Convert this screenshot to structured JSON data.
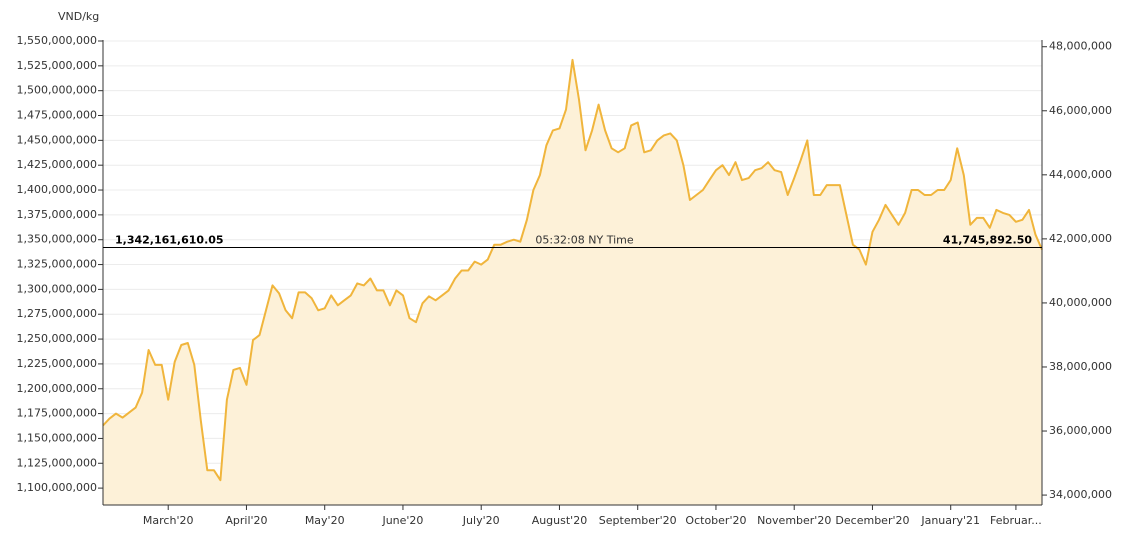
{
  "chart_data": {
    "type": "area",
    "unit_label": "VND/kg",
    "categories": [
      null,
      null,
      null,
      null,
      null,
      null,
      null,
      null,
      null,
      null,
      "March'20",
      null,
      null,
      null,
      null,
      null,
      null,
      null,
      null,
      null,
      null,
      null,
      "April'20",
      null,
      null,
      null,
      null,
      null,
      null,
      null,
      null,
      null,
      null,
      null,
      "May'20",
      null,
      null,
      null,
      null,
      null,
      null,
      null,
      null,
      null,
      null,
      null,
      "June'20",
      null,
      null,
      null,
      null,
      null,
      null,
      null,
      null,
      null,
      null,
      null,
      "July'20",
      null,
      null,
      null,
      null,
      null,
      null,
      null,
      null,
      null,
      null,
      null,
      "August'20",
      null,
      null,
      null,
      null,
      null,
      null,
      null,
      null,
      null,
      null,
      null,
      "September'20",
      null,
      null,
      null,
      null,
      null,
      null,
      null,
      null,
      null,
      null,
      null,
      "October'20",
      null,
      null,
      null,
      null,
      null,
      null,
      null,
      null,
      null,
      null,
      null,
      "November'20",
      null,
      null,
      null,
      null,
      null,
      null,
      null,
      null,
      null,
      null,
      null,
      "December'20",
      null,
      null,
      null,
      null,
      null,
      null,
      null,
      null,
      null,
      null,
      null,
      "January'21",
      null,
      null,
      null,
      null,
      null,
      null,
      null,
      null,
      null,
      "Februar...",
      null,
      null,
      null,
      null
    ],
    "values": [
      1163000000,
      1170000000,
      1175000000,
      1171000000,
      1176000000,
      1181000000,
      1196000000,
      1239000000,
      1224000000,
      1224000000,
      1189000000,
      1227000000,
      1244000000,
      1246000000,
      1224000000,
      1168000000,
      1118000000,
      1118000000,
      1108000000,
      1189000000,
      1219000000,
      1221000000,
      1204000000,
      1249000000,
      1254000000,
      1279000000,
      1304000000,
      1296000000,
      1279000000,
      1271000000,
      1297000000,
      1297000000,
      1291000000,
      1279000000,
      1281000000,
      1294000000,
      1284000000,
      1289000000,
      1294000000,
      1306000000,
      1304000000,
      1311000000,
      1299000000,
      1299000000,
      1284000000,
      1299000000,
      1294000000,
      1271000000,
      1267000000,
      1286000000,
      1293000000,
      1289000000,
      1294000000,
      1299000000,
      1311000000,
      1319000000,
      1319000000,
      1328000000,
      1325000000,
      1330000000,
      1345000000,
      1345000000,
      1348000000,
      1350000000,
      1348000000,
      1370000000,
      1400000000,
      1415000000,
      1445000000,
      1460000000,
      1462000000,
      1481000000,
      1531000000,
      1491000000,
      1440000000,
      1460000000,
      1486000000,
      1460000000,
      1442000000,
      1438000000,
      1442000000,
      1465000000,
      1468000000,
      1438000000,
      1440000000,
      1450000000,
      1455000000,
      1457000000,
      1450000000,
      1425000000,
      1390000000,
      1395000000,
      1400000000,
      1410000000,
      1420000000,
      1425000000,
      1415000000,
      1428000000,
      1410000000,
      1412000000,
      1420000000,
      1422000000,
      1428000000,
      1420000000,
      1418000000,
      1395000000,
      1412000000,
      1430000000,
      1450000000,
      1395000000,
      1395000000,
      1405000000,
      1405000000,
      1405000000,
      1375000000,
      1345000000,
      1340000000,
      1325000000,
      1358000000,
      1370000000,
      1385000000,
      1375000000,
      1365000000,
      1377000000,
      1400000000,
      1400000000,
      1395000000,
      1395000000,
      1400000000,
      1400000000,
      1410000000,
      1442000000,
      1415000000,
      1365000000,
      1372000000,
      1372000000,
      1362000000,
      1380000000,
      1377000000,
      1375000000,
      1368000000,
      1370000000,
      1380000000,
      1355000000,
      1340000000
    ],
    "color": "#f0b53c",
    "fill_color": "#fdf1d8",
    "grid": true,
    "ylim": [
      1083000000,
      1551000000
    ],
    "yticks": [
      {
        "value": 1100000000,
        "label": "1,100,000,000"
      },
      {
        "value": 1125000000,
        "label": "1,125,000,000"
      },
      {
        "value": 1150000000,
        "label": "1,150,000,000"
      },
      {
        "value": 1175000000,
        "label": "1,175,000,000"
      },
      {
        "value": 1200000000,
        "label": "1,200,000,000"
      },
      {
        "value": 1225000000,
        "label": "1,225,000,000"
      },
      {
        "value": 1250000000,
        "label": "1,250,000,000"
      },
      {
        "value": 1275000000,
        "label": "1,275,000,000"
      },
      {
        "value": 1300000000,
        "label": "1,300,000,000"
      },
      {
        "value": 1325000000,
        "label": "1,325,000,000"
      },
      {
        "value": 1350000000,
        "label": "1,350,000,000"
      },
      {
        "value": 1375000000,
        "label": "1,375,000,000"
      },
      {
        "value": 1400000000,
        "label": "1,400,000,000"
      },
      {
        "value": 1425000000,
        "label": "1,425,000,000"
      },
      {
        "value": 1450000000,
        "label": "1,450,000,000"
      },
      {
        "value": 1475000000,
        "label": "1,475,000,000"
      },
      {
        "value": 1500000000,
        "label": "1,500,000,000"
      },
      {
        "value": 1525000000,
        "label": "1,525,000,000"
      },
      {
        "value": 1550000000,
        "label": "1,550,000,000"
      }
    ],
    "y2lim": [
      33690000,
      48210000
    ],
    "y2ticks": [
      {
        "value": 34000000,
        "label": "34,000,000"
      },
      {
        "value": 36000000,
        "label": "36,000,000"
      },
      {
        "value": 38000000,
        "label": "38,000,000"
      },
      {
        "value": 40000000,
        "label": "40,000,000"
      },
      {
        "value": 42000000,
        "label": "42,000,000"
      },
      {
        "value": 44000000,
        "label": "44,000,000"
      },
      {
        "value": 46000000,
        "label": "46,000,000"
      },
      {
        "value": 48000000,
        "label": "48,000,000"
      }
    ],
    "current": {
      "value": 1342161610.05,
      "label": "1,342,161,610.05"
    },
    "current_y2": {
      "value": 41745892.5,
      "label": "41,745,892.50"
    },
    "current_time": "05:32:08 NY Time"
  }
}
